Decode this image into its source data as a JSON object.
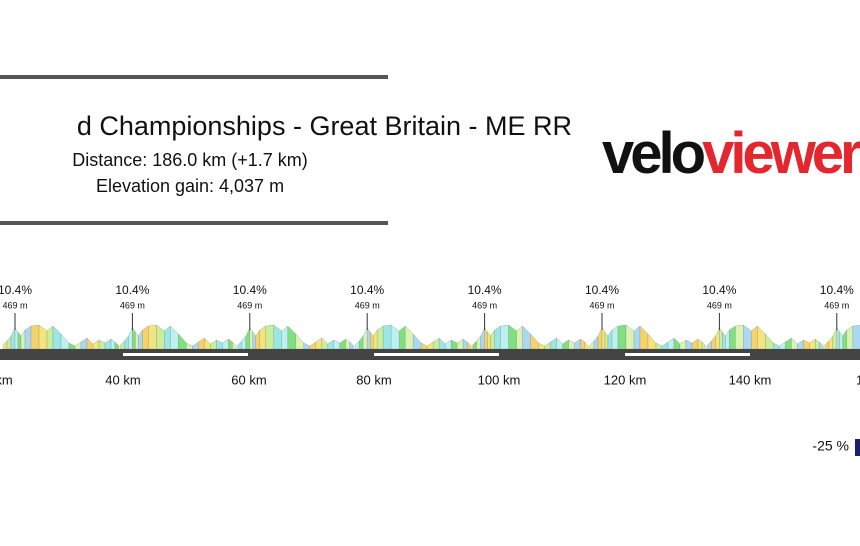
{
  "header": {
    "title": "d Championships - Great Britain - ME RR",
    "distance": "Distance: 186.0 km (+1.7 km)",
    "elevation_gain": "Elevation gain: 4,037 m"
  },
  "logo": {
    "part1": "velo",
    "part2": "viewer"
  },
  "climbs": [
    {
      "gradient": "10.4%",
      "elevation": "469 m"
    },
    {
      "gradient": "10.4%",
      "elevation": "469 m"
    },
    {
      "gradient": "10.4%",
      "elevation": "469 m"
    },
    {
      "gradient": "10.4%",
      "elevation": "469 m"
    },
    {
      "gradient": "10.4%",
      "elevation": "469 m"
    },
    {
      "gradient": "10.4%",
      "elevation": "469 m"
    },
    {
      "gradient": "10.4%",
      "elevation": "469 m"
    },
    {
      "gradient": "10.4%",
      "elevation": "469 m"
    }
  ],
  "axis": {
    "labels": [
      "km",
      "40 km",
      "60 km",
      "80 km",
      "100 km",
      "120 km",
      "140 km",
      "1"
    ]
  },
  "legend": {
    "label": "-25 %"
  }
}
